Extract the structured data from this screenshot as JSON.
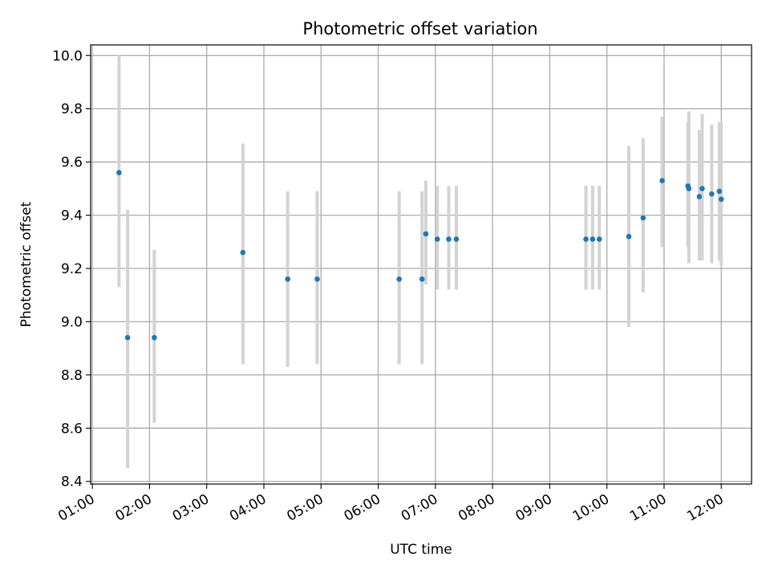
{
  "chart_data": {
    "type": "scatter",
    "title": "Photometric offset variation",
    "xlabel": "UTC time",
    "ylabel": "Photometric offset",
    "x_tick_labels": [
      "01:00",
      "02:00",
      "03:00",
      "04:00",
      "05:00",
      "06:00",
      "07:00",
      "08:00",
      "09:00",
      "10:00",
      "11:00",
      "12:00"
    ],
    "x_ticks_hours": [
      1,
      2,
      3,
      4,
      5,
      6,
      7,
      8,
      9,
      10,
      11,
      12
    ],
    "y_tick_labels": [
      "8.4",
      "8.6",
      "8.8",
      "9.0",
      "9.2",
      "9.4",
      "9.6",
      "9.8",
      "10.0"
    ],
    "y_ticks": [
      8.4,
      8.6,
      8.8,
      9.0,
      9.2,
      9.4,
      9.6,
      9.8,
      10.0
    ],
    "xlim_hours": [
      0.97,
      12.53
    ],
    "ylim": [
      8.39,
      10.04
    ],
    "grid": true,
    "colors": {
      "marker": "#1f77b4",
      "errorbar": "#d3d3d3",
      "grid": "#b0b0b0"
    },
    "series": [
      {
        "points": [
          {
            "t": "01:28",
            "y": 9.56,
            "lo": 9.13,
            "hi": 10.0
          },
          {
            "t": "01:37",
            "y": 8.94,
            "lo": 8.45,
            "hi": 9.42
          },
          {
            "t": "02:05",
            "y": 8.94,
            "lo": 8.62,
            "hi": 9.27
          },
          {
            "t": "03:38",
            "y": 9.26,
            "lo": 8.84,
            "hi": 9.67
          },
          {
            "t": "04:25",
            "y": 9.16,
            "lo": 8.83,
            "hi": 9.49
          },
          {
            "t": "04:56",
            "y": 9.16,
            "lo": 8.84,
            "hi": 9.49
          },
          {
            "t": "06:22",
            "y": 9.16,
            "lo": 8.84,
            "hi": 9.49
          },
          {
            "t": "06:46",
            "y": 9.16,
            "lo": 8.84,
            "hi": 9.49
          },
          {
            "t": "06:50",
            "y": 9.33,
            "lo": 9.14,
            "hi": 9.53
          },
          {
            "t": "07:02",
            "y": 9.31,
            "lo": 9.12,
            "hi": 9.51
          },
          {
            "t": "07:14",
            "y": 9.31,
            "lo": 9.12,
            "hi": 9.51
          },
          {
            "t": "07:22",
            "y": 9.31,
            "lo": 9.12,
            "hi": 9.51
          },
          {
            "t": "09:38",
            "y": 9.31,
            "lo": 9.12,
            "hi": 9.51
          },
          {
            "t": "09:45",
            "y": 9.31,
            "lo": 9.12,
            "hi": 9.51
          },
          {
            "t": "09:52",
            "y": 9.31,
            "lo": 9.12,
            "hi": 9.51
          },
          {
            "t": "10:23",
            "y": 9.32,
            "lo": 8.98,
            "hi": 9.66
          },
          {
            "t": "10:38",
            "y": 9.39,
            "lo": 9.11,
            "hi": 9.69
          },
          {
            "t": "10:58",
            "y": 9.53,
            "lo": 9.28,
            "hi": 9.77
          },
          {
            "t": "11:25",
            "y": 9.51,
            "lo": 9.28,
            "hi": 9.75
          },
          {
            "t": "11:26",
            "y": 9.5,
            "lo": 9.22,
            "hi": 9.79
          },
          {
            "t": "11:37",
            "y": 9.47,
            "lo": 9.23,
            "hi": 9.72
          },
          {
            "t": "11:40",
            "y": 9.5,
            "lo": 9.23,
            "hi": 9.78
          },
          {
            "t": "11:50",
            "y": 9.48,
            "lo": 9.22,
            "hi": 9.74
          },
          {
            "t": "11:58",
            "y": 9.49,
            "lo": 9.23,
            "hi": 9.75
          },
          {
            "t": "12:00",
            "y": 9.46,
            "lo": 9.21,
            "hi": 9.75
          }
        ]
      }
    ]
  }
}
